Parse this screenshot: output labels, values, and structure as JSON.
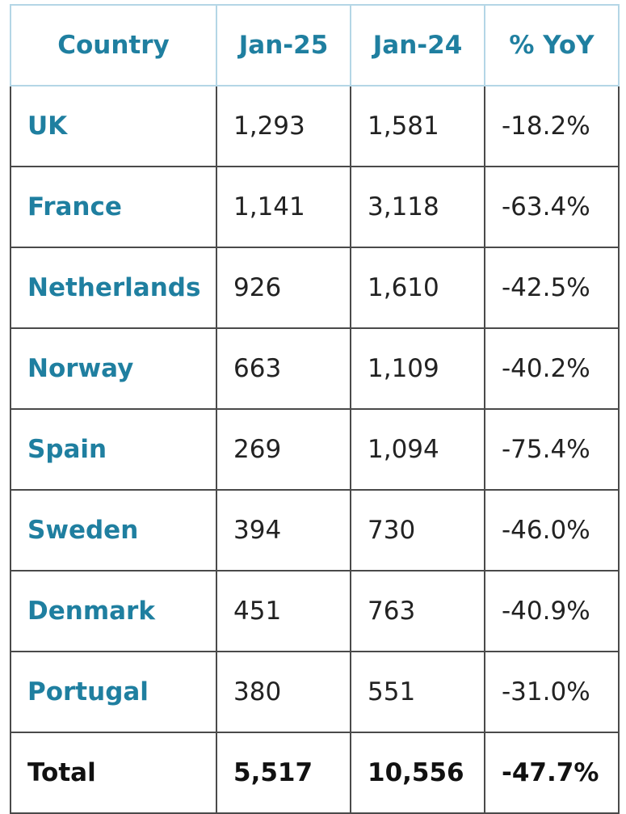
{
  "table": {
    "header": [
      "Country",
      "Jan-25",
      "Jan-24",
      "% YoY"
    ],
    "rows": [
      [
        "UK",
        "1,293",
        "1,581",
        "-18.2%"
      ],
      [
        "France",
        "1,141",
        "3,118",
        "-63.4%"
      ],
      [
        "Netherlands",
        "926",
        "1,610",
        "-42.5%"
      ],
      [
        "Norway",
        "663",
        "1,109",
        "-40.2%"
      ],
      [
        "Spain",
        "269",
        "1,094",
        "-75.4%"
      ],
      [
        "Sweden",
        "394",
        "730",
        "-46.0%"
      ],
      [
        "Denmark",
        "451",
        "763",
        "-40.9%"
      ],
      [
        "Portugal",
        "380",
        "551",
        "-31.0%"
      ]
    ],
    "total": [
      "Total",
      "5,517",
      "10,556",
      "-47.7%"
    ]
  }
}
